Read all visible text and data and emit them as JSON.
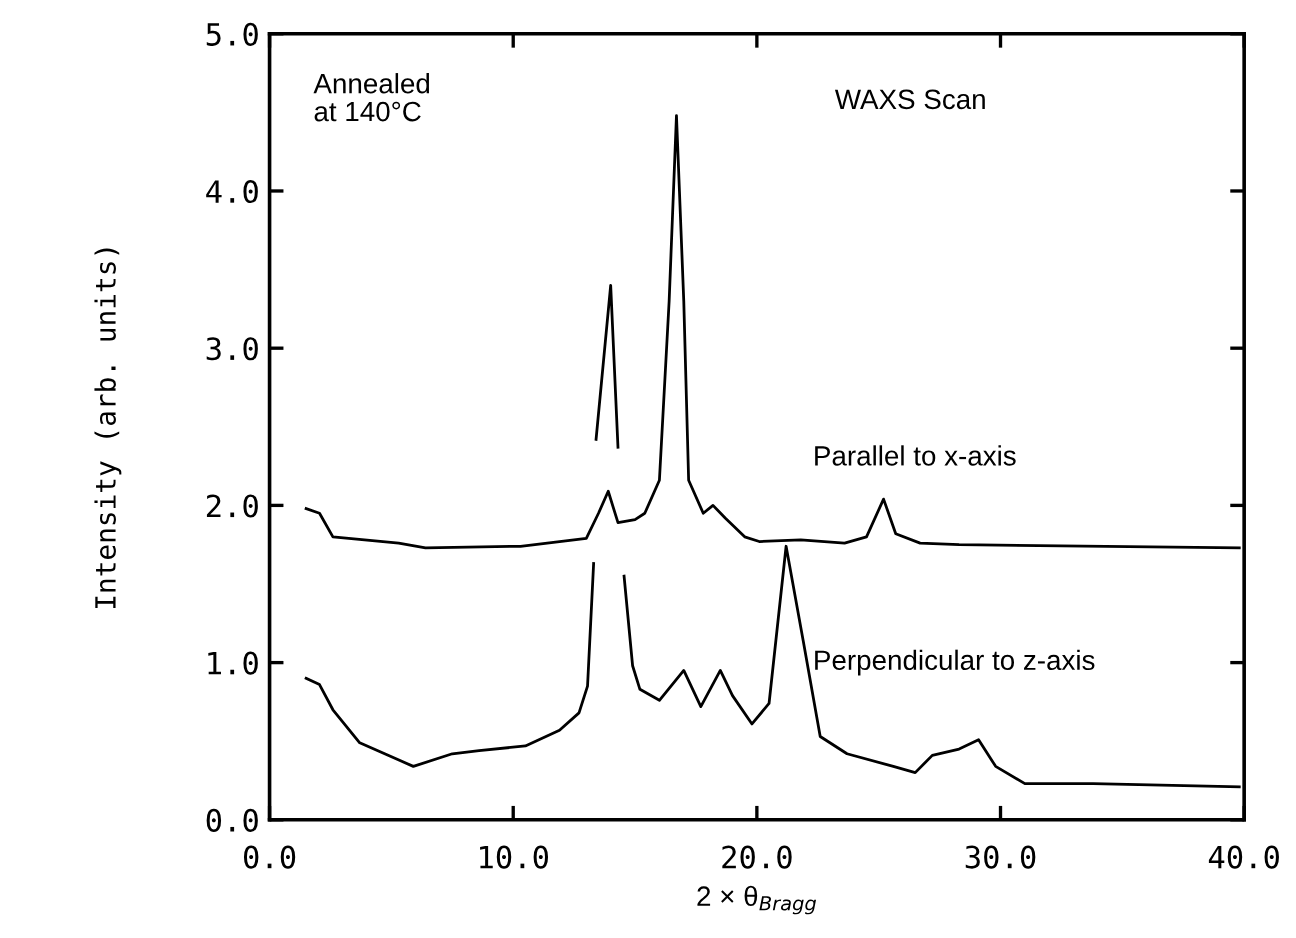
{
  "chart_data": {
    "type": "line",
    "xlabel": "2 × θ$_{Bragg}$",
    "ylabel": "Intensity (arb. units)",
    "xlim": [
      0,
      40
    ],
    "ylim": [
      0,
      5
    ],
    "xticks": [
      {
        "value": 0,
        "label": "0.0"
      },
      {
        "value": 10,
        "label": "10.0"
      },
      {
        "value": 20,
        "label": "20.0"
      },
      {
        "value": 30,
        "label": "30.0"
      },
      {
        "value": 40,
        "label": "40.0"
      }
    ],
    "yticks": [
      {
        "value": 0,
        "label": "0.0"
      },
      {
        "value": 1,
        "label": "1.0"
      },
      {
        "value": 2,
        "label": "2.0"
      },
      {
        "value": 3,
        "label": "3.0"
      },
      {
        "value": 4,
        "label": "4.0"
      },
      {
        "value": 5,
        "label": "5.0"
      }
    ],
    "grid": false,
    "legend": false,
    "marker": "none",
    "line_style": "solid",
    "annotations": [
      "Annealed\nat 140°C",
      "WAXS Scan"
    ],
    "series": [
      {
        "name": "Parallel to x-axis",
        "color": "#000000",
        "x": [
          1.5,
          2.05,
          2.6,
          5.3,
          6.4,
          10.3,
          13.0,
          13.5,
          13.9,
          14.3,
          15.0,
          15.4,
          16.0,
          16.4,
          16.7,
          17.0,
          17.2,
          17.8,
          18.2,
          18.7,
          19.5,
          20.1,
          21.8,
          23.6,
          24.5,
          25.2,
          25.7,
          26.7,
          28.3,
          39.8
        ],
        "values": [
          1.98,
          1.95,
          1.8,
          1.76,
          1.73,
          1.74,
          1.79,
          1.95,
          2.09,
          1.89,
          1.91,
          1.95,
          2.16,
          3.3,
          4.48,
          3.3,
          2.16,
          1.95,
          2.0,
          1.92,
          1.8,
          1.77,
          1.78,
          1.76,
          1.8,
          2.04,
          1.82,
          1.76,
          1.75,
          1.73
        ]
      },
      {
        "name": "Perpendicular to z-axis",
        "color": "#000000",
        "x": [
          1.5,
          2.05,
          2.6,
          3.7,
          5.9,
          7.5,
          8.6,
          10.5,
          11.9,
          12.7,
          13.05,
          13.3,
          13.35,
          13.4,
          14.0,
          14.3,
          14.4,
          14.55,
          14.9,
          15.2,
          16.0,
          17.0,
          17.7,
          18.5,
          19.0,
          19.8,
          20.5,
          21.2,
          21.9,
          22.6,
          23.7,
          25.6,
          26.5,
          27.2,
          28.3,
          29.1,
          29.8,
          31.0,
          33.8,
          39.8
        ],
        "values": [
          0.9,
          0.86,
          0.7,
          0.49,
          0.34,
          0.42,
          0.44,
          0.47,
          0.57,
          0.68,
          0.85,
          1.63,
          null,
          2.42,
          3.4,
          2.37,
          null,
          1.55,
          0.98,
          0.83,
          0.76,
          0.95,
          0.72,
          0.95,
          0.79,
          0.61,
          0.74,
          1.74,
          1.14,
          0.53,
          0.42,
          0.34,
          0.3,
          0.41,
          0.45,
          0.51,
          0.34,
          0.23,
          0.23,
          0.21
        ]
      }
    ]
  }
}
